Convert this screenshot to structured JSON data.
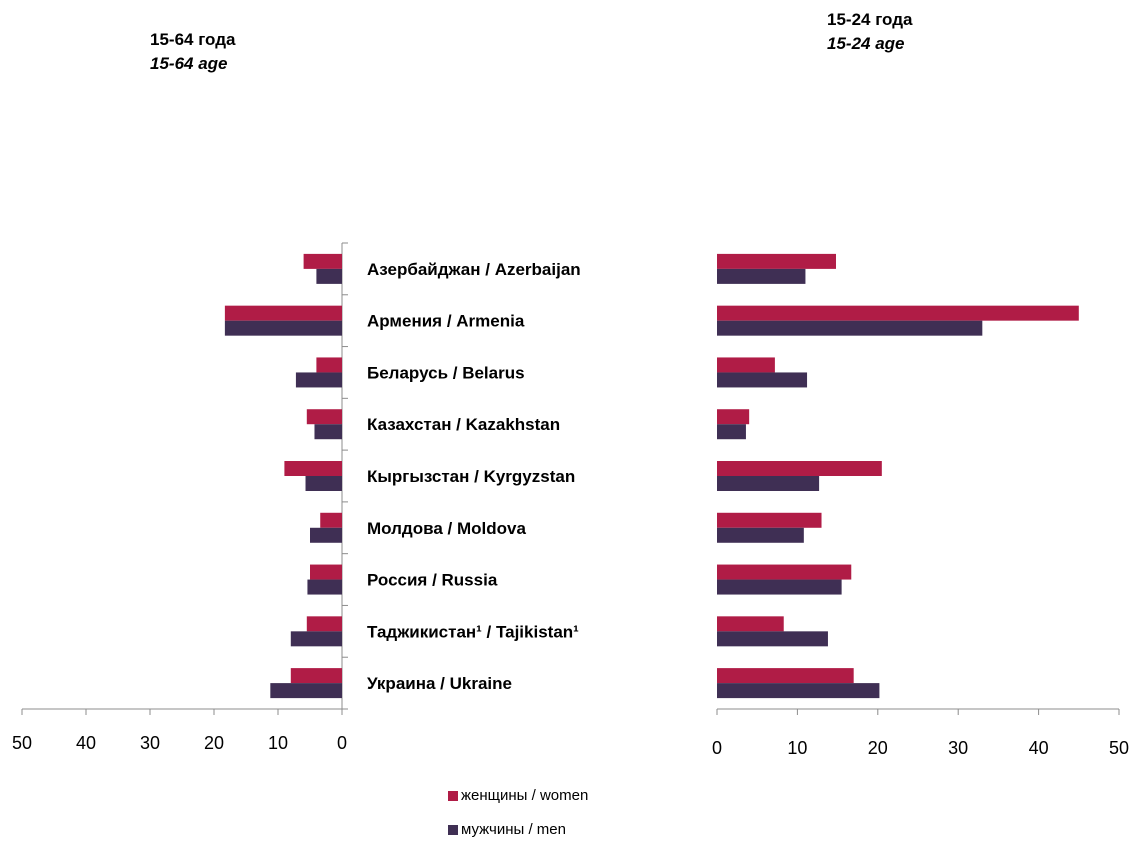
{
  "titles": {
    "left": {
      "main": "15-64 года",
      "sub": "15-64 age"
    },
    "right": {
      "main": "15-24 года",
      "sub": "15-24 age"
    }
  },
  "colors": {
    "women": "#B01C46",
    "men": "#3F2F54",
    "axis": "#8C8C8C"
  },
  "chart_data": [
    {
      "type": "bar",
      "orientation": "horizontal",
      "direction": "reversed",
      "title": "15-64 года / 15-64 age",
      "categories": [
        "Азербайджан / Azerbaijan",
        "Армения / Armenia",
        "Беларусь / Belarus",
        "Казахстан / Kazakhstan",
        "Кыргызстан / Kyrgyzstan",
        "Молдова / Moldova",
        "Россия / Russia",
        "Таджикистан¹ / Tajikistan¹",
        "Украина / Ukraine"
      ],
      "series": [
        {
          "name": "женщины / women",
          "values": [
            6,
            18.3,
            4,
            5.5,
            9,
            3.4,
            5,
            5.5,
            8
          ]
        },
        {
          "name": "мужчины / men",
          "values": [
            4,
            18.3,
            7.2,
            4.3,
            5.7,
            5,
            5.4,
            8,
            11.2
          ]
        }
      ],
      "xlim": [
        0,
        50
      ],
      "ticks": [
        "50",
        "40",
        "30",
        "20",
        "10",
        "0"
      ]
    },
    {
      "type": "bar",
      "orientation": "horizontal",
      "title": "15-24 года / 15-24 age",
      "categories": [
        "Азербайджан / Azerbaijan",
        "Армения / Armenia",
        "Беларусь / Belarus",
        "Казахстан / Kazakhstan",
        "Кыргызстан / Kyrgyzstan",
        "Молдова / Moldova",
        "Россия / Russia",
        "Таджикистан¹ / Tajikistan¹",
        "Украина / Ukraine"
      ],
      "series": [
        {
          "name": "женщины / women",
          "values": [
            14.8,
            45,
            7.2,
            4,
            20.5,
            13,
            16.7,
            8.3,
            17
          ]
        },
        {
          "name": "мужчины / men",
          "values": [
            11,
            33,
            11.2,
            3.6,
            12.7,
            10.8,
            15.5,
            13.8,
            20.2
          ]
        }
      ],
      "xlim": [
        0,
        50
      ],
      "ticks": [
        "0",
        "10",
        "20",
        "30",
        "40",
        "50"
      ]
    }
  ],
  "legend": [
    {
      "key": "women",
      "label": "женщины / women"
    },
    {
      "key": "men",
      "label": "мужчины / men"
    }
  ]
}
